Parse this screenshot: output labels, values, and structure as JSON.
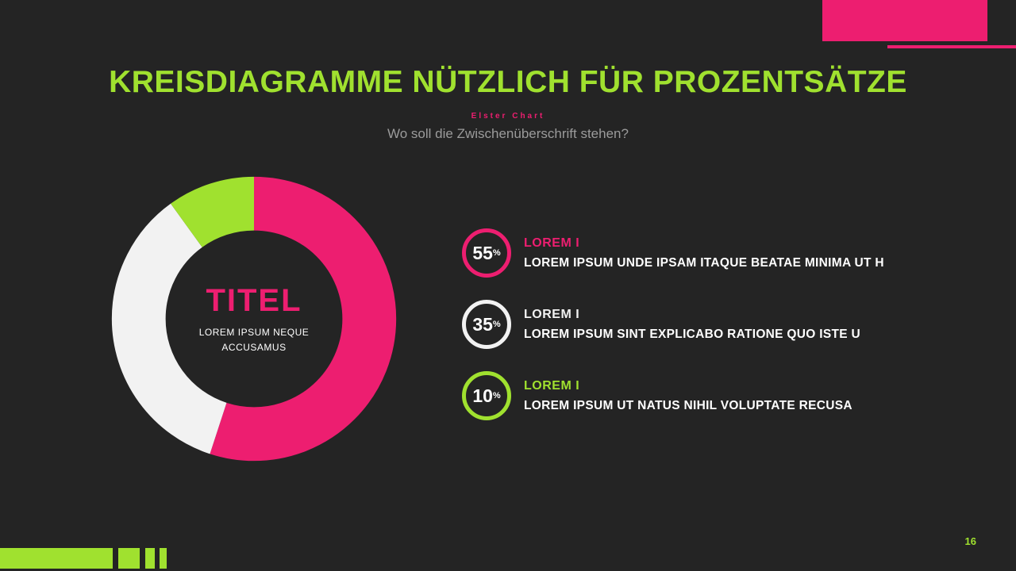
{
  "header": {
    "title": "KREISDIAGRAMME NÜTZLICH FÜR PROZENTSÄTZE",
    "kicker": "Elster Chart",
    "subtitle": "Wo soll die Zwischenüberschrift stehen?"
  },
  "chart_data": {
    "type": "pie",
    "donut": true,
    "start_angle_deg": 0,
    "direction": "clockwise",
    "center_title": "TITEL",
    "center_subtitle": "LOREM IPSUM NEQUE ACCUSAMUS",
    "segments": [
      {
        "label": "LOREM I",
        "value": 55,
        "unit": "%",
        "color": "#ED1E70",
        "description": "LOREM IPSUM UNDE IPSAM ITAQUE BEATAE MINIMA UT H"
      },
      {
        "label": "LOREM I",
        "value": 35,
        "unit": "%",
        "color": "#F2F2F2",
        "description": "LOREM IPSUM SINT EXPLICABO RATIONE QUO ISTE U"
      },
      {
        "label": "LOREM I",
        "value": 10,
        "unit": "%",
        "color": "#A0E12F",
        "description": "LOREM IPSUM UT NATUS NIHIL VOLUPTATE RECUSA"
      }
    ]
  },
  "footer": {
    "page_number": "16"
  },
  "colors": {
    "background": "#242424",
    "accent_pink": "#ED1E70",
    "accent_green": "#A0E12F",
    "segment_white": "#F2F2F2",
    "text_white": "#FFFFFF",
    "text_muted": "#9B9B9B"
  }
}
